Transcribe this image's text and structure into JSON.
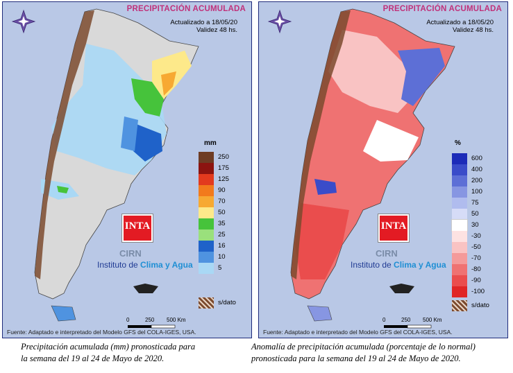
{
  "panels": [
    {
      "title": "PRECIPITACIÓN ACUMULADA",
      "updated": "Actualizado a 18/05/20",
      "validity": "Validez 48 hs.",
      "unit": "mm",
      "legend": [
        {
          "label": "250",
          "color": "#6e3c24"
        },
        {
          "label": "175",
          "color": "#8c1410"
        },
        {
          "label": "125",
          "color": "#e23a1e"
        },
        {
          "label": "90",
          "color": "#f27a1c"
        },
        {
          "label": "70",
          "color": "#f7a932"
        },
        {
          "label": "50",
          "color": "#fde98a"
        },
        {
          "label": "35",
          "color": "#46c33b"
        },
        {
          "label": "25",
          "color": "#9ae07c"
        },
        {
          "label": "16",
          "color": "#1f62c9"
        },
        {
          "label": "10",
          "color": "#4f93e0"
        },
        {
          "label": "5",
          "color": "#a9d8f5"
        }
      ],
      "nodata_label": "s/dato",
      "logo_text": "INTA",
      "cirn": "CIRN",
      "institute_prefix": "Instituto de ",
      "institute_highlight": "Clima y Agua",
      "scale_labels": [
        "0",
        "250",
        "500 Km"
      ],
      "source": "Fuente: Adaptado e interpretado del Modelo GFS del COLA-IGES, USA.",
      "caption": [
        "Precipitación acumulada (mm) pronosticada para",
        "la semana del 19 al 24 de Mayo de 2020."
      ]
    },
    {
      "title": "PRECIPITACIÓN ACUMULADA",
      "updated": "Actualizado a 18/05/20",
      "validity": "Validez 48 hs.",
      "unit": "%",
      "legend": [
        {
          "label": "600",
          "color": "#1c2bb8"
        },
        {
          "label": "400",
          "color": "#3a4cc9"
        },
        {
          "label": "200",
          "color": "#5d6fd6"
        },
        {
          "label": "100",
          "color": "#8796e2"
        },
        {
          "label": "75",
          "color": "#b0bcee"
        },
        {
          "label": "50",
          "color": "#d6dcf7"
        },
        {
          "label": "30",
          "color": "#ffffff"
        },
        {
          "label": "-30",
          "color": "#fde2e2"
        },
        {
          "label": "-50",
          "color": "#f9c3c3"
        },
        {
          "label": "-70",
          "color": "#f49a9a"
        },
        {
          "label": "-80",
          "color": "#ef7272"
        },
        {
          "label": "-90",
          "color": "#ea4d4d"
        },
        {
          "label": "-100",
          "color": "#e02626"
        }
      ],
      "nodata_label": "s/dato",
      "logo_text": "INTA",
      "cirn": "CIRN",
      "institute_prefix": "Instituto de ",
      "institute_highlight": "Clima y Agua",
      "scale_labels": [
        "0",
        "250",
        "500 Km"
      ],
      "source": "Fuente: Adaptado e interpretado del Modelo GFS del COLA-IGES, USA.",
      "caption": [
        "Anomalía de precipitación acumulada (porcentaje de lo normal)",
        "pronosticada para la semana del 19 al 24 de Mayo de 2020."
      ]
    }
  ]
}
